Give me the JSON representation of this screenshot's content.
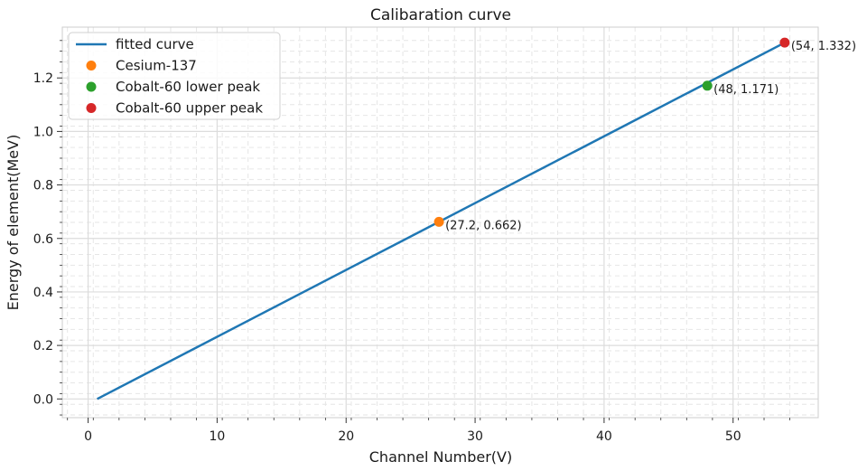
{
  "chart_data": {
    "type": "line",
    "title": "Calibaration curve",
    "xlabel": "Channel Number(V)",
    "ylabel": "Energy of element(MeV)",
    "xlim": [
      -2,
      56.6
    ],
    "ylim": [
      -0.07,
      1.39
    ],
    "xticks": [
      0,
      10,
      20,
      30,
      40,
      50
    ],
    "yticks": [
      0.0,
      0.2,
      0.4,
      0.6,
      0.8,
      1.0,
      1.2
    ],
    "xtick_labels": [
      "0",
      "10",
      "20",
      "30",
      "40",
      "50"
    ],
    "ytick_labels": [
      "0.0",
      "0.2",
      "0.4",
      "0.6",
      "0.8",
      "1.0",
      "1.2"
    ],
    "grid": true,
    "legend_position": "top-left",
    "series": [
      {
        "name": "fitted curve",
        "kind": "line",
        "color": "#1f77b4",
        "points": [
          [
            0.7,
            0.0
          ],
          [
            54,
            1.332
          ]
        ]
      },
      {
        "name": "Cesium-137",
        "kind": "point",
        "color": "#ff7f0e",
        "points": [
          [
            27.2,
            0.662
          ]
        ],
        "annotation": "(27.2, 0.662)"
      },
      {
        "name": "Cobalt-60 lower peak",
        "kind": "point",
        "color": "#2ca02c",
        "points": [
          [
            48,
            1.171
          ]
        ],
        "annotation": "(48, 1.171)"
      },
      {
        "name": "Cobalt-60 upper peak",
        "kind": "point",
        "color": "#d62728",
        "points": [
          [
            54,
            1.332
          ]
        ],
        "annotation": "(54, 1.332)"
      }
    ]
  }
}
